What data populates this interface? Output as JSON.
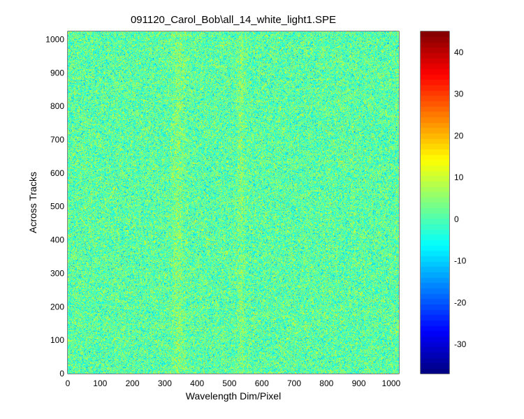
{
  "chart_data": {
    "type": "heatmap",
    "title": "091120_Carol_Bob\\all_14_white_light1.SPE",
    "xlabel": "Wavelength Dim/Pixel",
    "ylabel": "Across Tracks",
    "xlim": [
      0,
      1024
    ],
    "ylim": [
      0,
      1024
    ],
    "x_ticks": [
      0,
      100,
      200,
      300,
      400,
      500,
      600,
      700,
      800,
      900,
      1000
    ],
    "y_ticks": [
      0,
      100,
      200,
      300,
      400,
      500,
      600,
      700,
      800,
      900,
      1000
    ],
    "x_tick_labels": [
      "0",
      "100",
      "200",
      "300",
      "400",
      "500",
      "600",
      "700",
      "800",
      "900",
      "1000"
    ],
    "y_tick_labels": [
      "0",
      "100",
      "200",
      "300",
      "400",
      "500",
      "600",
      "700",
      "800",
      "900",
      "1000"
    ],
    "colormap": "jet",
    "clim": [
      -37,
      45
    ],
    "colorbar_ticks": [
      40,
      30,
      20,
      10,
      0,
      -10,
      -20,
      -30
    ],
    "colorbar_tick_labels": [
      "40",
      "30",
      "20",
      "10",
      "0",
      "-10",
      "-20",
      "-30"
    ],
    "typical_value_range": [
      -12,
      14
    ],
    "mean_value": 1,
    "features": [
      {
        "description": "faint brighter vertical band",
        "x_center": 535,
        "x_width": 25
      },
      {
        "description": "faint brighter vertical band",
        "x_center": 340,
        "x_width": 40
      }
    ]
  }
}
